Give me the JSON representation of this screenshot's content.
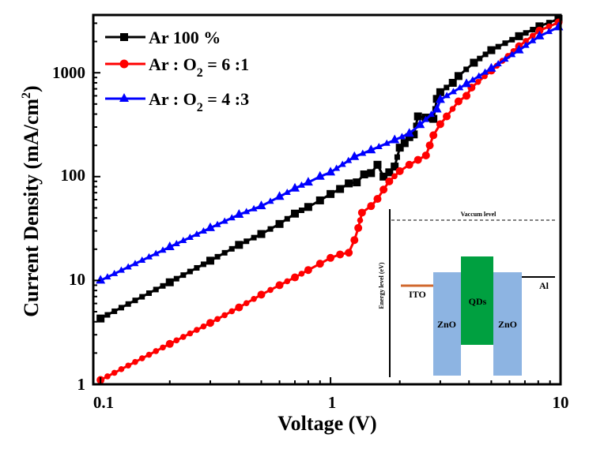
{
  "chart_data": {
    "type": "line",
    "title": "",
    "xlabel": "Voltage (V)",
    "ylabel": "Current Density (mA/cm2)",
    "ylabel_main": "Current Density (mA/cm",
    "ylabel_sup": "2",
    "ylabel_close": ")",
    "xscale": "log",
    "yscale": "log",
    "xlim": [
      0.093,
      10
    ],
    "ylim": [
      1,
      3600
    ],
    "xticks": [
      0.1,
      1,
      10
    ],
    "xtick_labels": [
      "0.1",
      "1",
      "10"
    ],
    "yticks": [
      1,
      10,
      100,
      1000
    ],
    "ytick_labels": [
      "1",
      "10",
      "100",
      "1000"
    ],
    "grid": false,
    "legend_position": "top-left",
    "series": [
      {
        "name": "Ar 100 %",
        "legend_main": "Ar 100 %",
        "legend_sub": "",
        "legend_tail": "",
        "color": "#000000",
        "marker": "square",
        "x": [
          0.1,
          0.2,
          0.3,
          0.4,
          0.5,
          0.6,
          0.7,
          0.8,
          0.9,
          1.0,
          1.1,
          1.2,
          1.3,
          1.4,
          1.5,
          1.6,
          1.7,
          1.8,
          1.9,
          2.0,
          2.1,
          2.2,
          2.3,
          2.4,
          2.6,
          2.8,
          2.9,
          3.0,
          3.4,
          3.6,
          4.2,
          5.0,
          6.6,
          8.1,
          9.8
        ],
        "y": [
          4.3,
          9.6,
          15.5,
          22,
          28,
          35,
          44,
          51,
          59,
          68,
          76,
          86,
          88,
          105,
          108,
          130,
          100,
          110,
          125,
          190,
          210,
          240,
          255,
          380,
          370,
          360,
          560,
          650,
          800,
          930,
          1250,
          1650,
          2250,
          2800,
          3300
        ]
      },
      {
        "name": "Ar : O2 = 6 :1",
        "legend_main": "Ar : O",
        "legend_sub": "2",
        "legend_tail": " = 6 :1",
        "color": "#ff0000",
        "marker": "circle",
        "x": [
          0.1,
          0.2,
          0.3,
          0.4,
          0.5,
          0.6,
          0.7,
          0.8,
          0.9,
          1.0,
          1.1,
          1.2,
          1.27,
          1.32,
          1.37,
          1.5,
          1.6,
          1.7,
          1.8,
          2.0,
          2.2,
          2.4,
          2.6,
          2.7,
          2.8,
          3.0,
          3.2,
          3.6,
          3.9,
          4.1,
          5.0,
          6.6,
          8.1,
          9.8
        ],
        "y": [
          1.1,
          2.45,
          3.9,
          5.5,
          7.3,
          9,
          10.7,
          12.6,
          14.5,
          16.5,
          17.8,
          18.5,
          24.5,
          32,
          45,
          52,
          61,
          75,
          90,
          113,
          130,
          145,
          160,
          200,
          250,
          320,
          380,
          530,
          600,
          720,
          1050,
          1800,
          2550,
          3050
        ]
      },
      {
        "name": "Ar : O2 = 4 :3",
        "legend_main": "Ar : O",
        "legend_sub": "2",
        "legend_tail": " = 4 :3",
        "color": "#0000ff",
        "marker": "triangle",
        "x": [
          0.1,
          0.2,
          0.3,
          0.4,
          0.5,
          0.6,
          0.7,
          0.8,
          0.9,
          1.0,
          1.27,
          1.5,
          1.9,
          2.2,
          2.45,
          2.9,
          3.0,
          3.9,
          5.0,
          6.6,
          8.1,
          9.8
        ],
        "y": [
          10,
          21,
          32,
          43,
          52,
          64,
          77,
          88,
          100,
          110,
          155,
          180,
          225,
          260,
          315,
          445,
          550,
          780,
          1100,
          1650,
          2250,
          2750
        ]
      }
    ],
    "inset": {
      "type": "energy-band-diagram",
      "ylabel": "Energy level (eV)",
      "vacuum_label": "Vaccum level",
      "layers": [
        {
          "name": "ITO",
          "kind": "electrode",
          "color": "#d0682e"
        },
        {
          "name": "ZnO",
          "kind": "block",
          "color": "#8db4e2"
        },
        {
          "name": "QDs",
          "kind": "block",
          "color": "#00a040"
        },
        {
          "name": "ZnO",
          "kind": "block",
          "color": "#8db4e2"
        },
        {
          "name": "Al",
          "kind": "electrode",
          "color": "#000000"
        }
      ]
    }
  }
}
